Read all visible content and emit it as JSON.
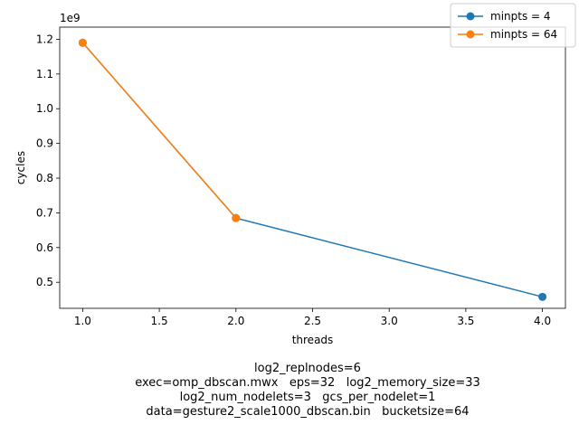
{
  "chart_data": {
    "type": "line",
    "xlabel": "threads",
    "ylabel": "cycles",
    "y_offset_label": "1e9",
    "xlim": [
      0.85,
      4.15
    ],
    "ylim": [
      0.425,
      1.235
    ],
    "xticks": [
      1.0,
      1.5,
      2.0,
      2.5,
      3.0,
      3.5,
      4.0
    ],
    "xtick_labels": [
      "1.0",
      "1.5",
      "2.0",
      "2.5",
      "3.0",
      "3.5",
      "4.0"
    ],
    "yticks": [
      0.5,
      0.6,
      0.7,
      0.8,
      0.9,
      1.0,
      1.1,
      1.2
    ],
    "ytick_labels": [
      "0.5",
      "0.6",
      "0.7",
      "0.8",
      "0.9",
      "1.0",
      "1.1",
      "1.2"
    ],
    "grid": false,
    "legend_position": "top-right",
    "series": [
      {
        "name": "minpts = 4",
        "color": "#1f77b4",
        "x": [
          1,
          2,
          4
        ],
        "y": [
          1.19,
          0.685,
          0.458
        ]
      },
      {
        "name": "minpts = 64",
        "color": "#ff7f0e",
        "x": [
          1,
          2
        ],
        "y": [
          1.19,
          0.685
        ]
      }
    ]
  },
  "caption": {
    "lines": [
      "log2_replnodes=6",
      "exec=omp_dbscan.mwx   eps=32   log2_memory_size=33",
      "log2_num_nodelets=3   gcs_per_nodelet=1",
      "data=gesture2_scale1000_dbscan.bin   bucketsize=64"
    ]
  }
}
